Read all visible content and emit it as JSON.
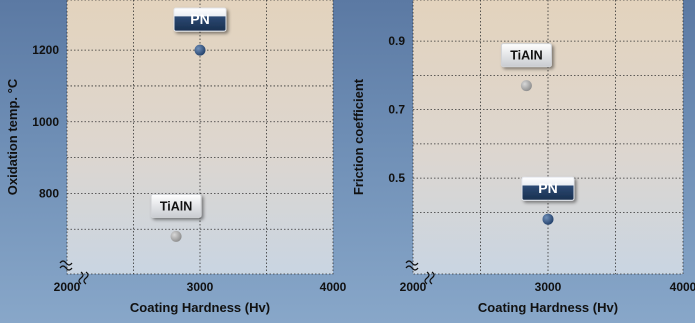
{
  "chart_data": [
    {
      "type": "scatter",
      "xlabel": "Coating Hardness (Hv)",
      "ylabel": "Oxidation temp. °C",
      "xlim": [
        2000,
        4000
      ],
      "ylim": [
        575,
        1340
      ],
      "x_ticks": [
        "2000",
        "3000",
        "4000"
      ],
      "x_tick_values": [
        2000,
        3000,
        4000
      ],
      "y_ticks": [
        "1200",
        "1000",
        "800"
      ],
      "y_tick_values": [
        1200,
        1000,
        800
      ],
      "axis_break": true,
      "grid": true,
      "points": [
        {
          "label": "PN",
          "x": 3000,
          "y": 1200,
          "color": "#2e4d77",
          "label_style": "dark"
        },
        {
          "label": "TiAlN",
          "x": 2820,
          "y": 680,
          "color": "#9a9a9a",
          "label_style": "light"
        }
      ]
    },
    {
      "type": "scatter",
      "xlabel": "Coating Hardness (Hv)",
      "ylabel": "Friction coefficient",
      "xlim": [
        2000,
        4000
      ],
      "ylim": [
        0.22,
        1.02
      ],
      "x_ticks": [
        "2000",
        "3000",
        "4000"
      ],
      "x_tick_values": [
        2000,
        3000,
        4000
      ],
      "y_ticks": [
        "0.9",
        "0.7",
        "0.5"
      ],
      "y_tick_values": [
        0.9,
        0.7,
        0.5
      ],
      "axis_break": true,
      "grid": true,
      "points": [
        {
          "label": "TiAlN",
          "x": 2840,
          "y": 0.77,
          "color": "#9a9a9a",
          "label_style": "light"
        },
        {
          "label": "PN",
          "x": 3000,
          "y": 0.38,
          "color": "#2e4d77",
          "label_style": "dark"
        }
      ]
    }
  ]
}
